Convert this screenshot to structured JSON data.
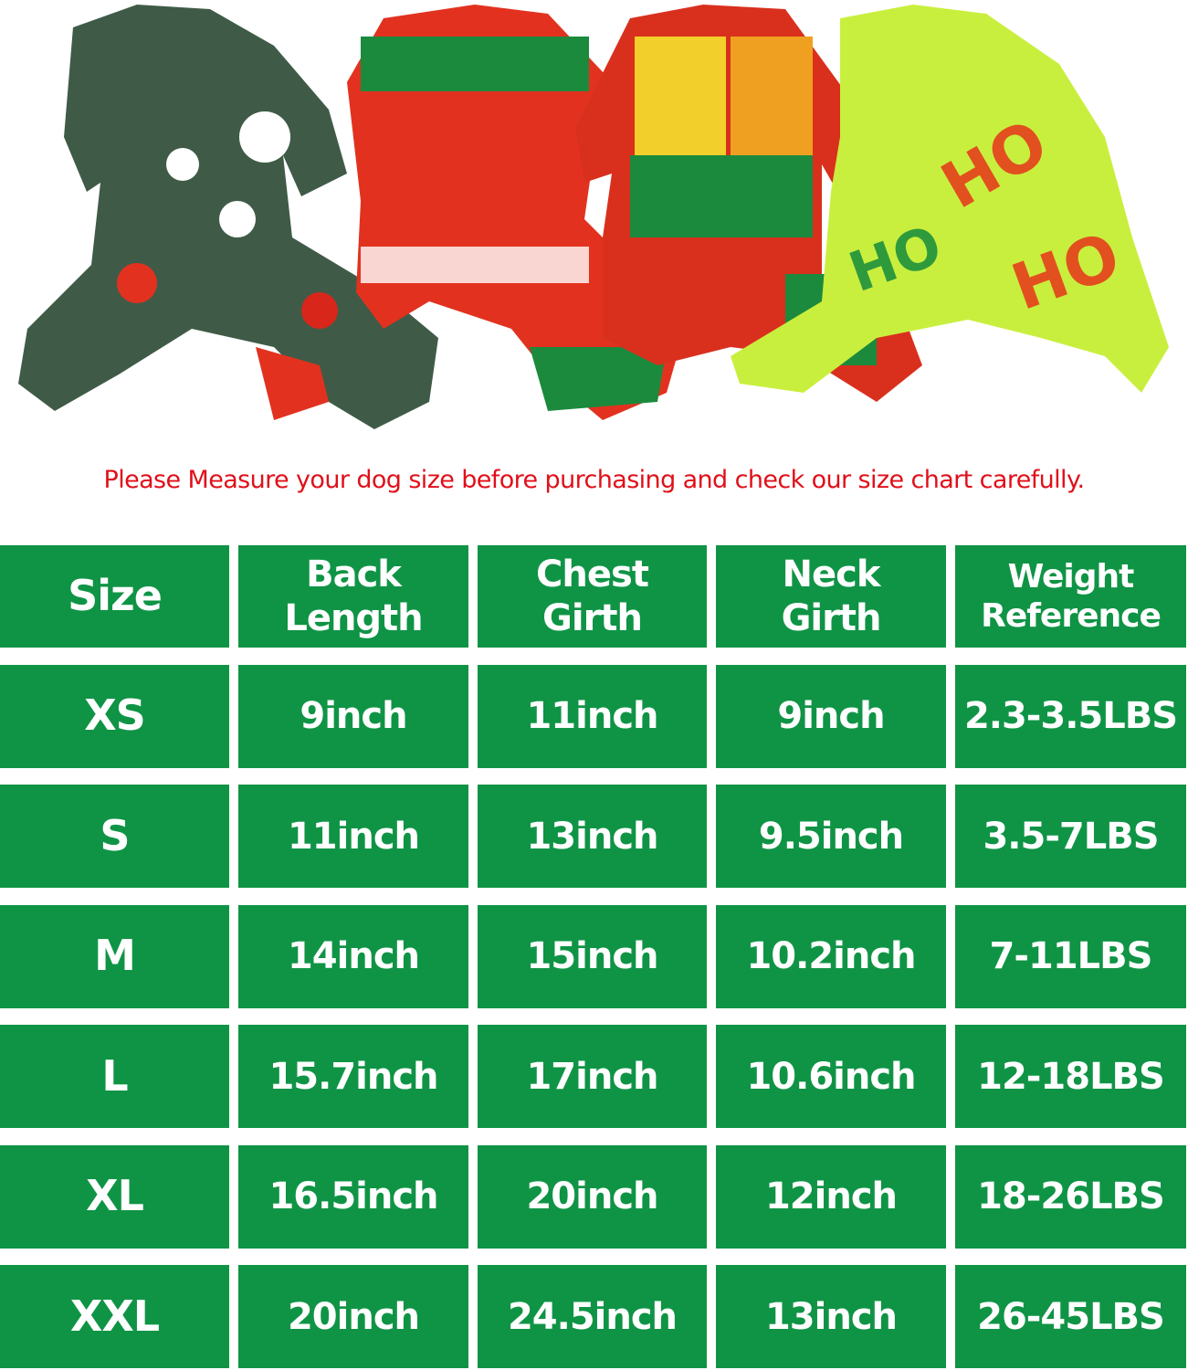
{
  "notice": "Please Measure your dog size before purchasing and check our size chart carefully.",
  "colors": {
    "table_green": "#0f9445",
    "notice_red": "#e0101a"
  },
  "products": [
    {
      "name": "green woodland print pajama",
      "color": "#3f5b47"
    },
    {
      "name": "red fair isle reindeer pajama",
      "color": "#e2321f"
    },
    {
      "name": "patchwork gift box pajama",
      "color": "#d9301e"
    },
    {
      "name": "lime HO HO print pajama",
      "color": "#c9ef3e"
    }
  ],
  "table": {
    "headers": [
      [
        "Size"
      ],
      [
        "Back",
        "Length"
      ],
      [
        "Chest",
        "Girth"
      ],
      [
        "Neck",
        "Girth"
      ],
      [
        "Weight",
        "Reference"
      ]
    ],
    "rows": [
      [
        "XS",
        "9inch",
        "11inch",
        "9inch",
        "2.3-3.5LBS"
      ],
      [
        "S",
        "11inch",
        "13inch",
        "9.5inch",
        "3.5-7LBS"
      ],
      [
        "M",
        "14inch",
        "15inch",
        "10.2inch",
        "7-11LBS"
      ],
      [
        "L",
        "15.7inch",
        "17inch",
        "10.6inch",
        "12-18LBS"
      ],
      [
        "XL",
        "16.5inch",
        "20inch",
        "12inch",
        "18-26LBS"
      ],
      [
        "XXL",
        "20inch",
        "24.5inch",
        "13inch",
        "26-45LBS"
      ]
    ]
  }
}
